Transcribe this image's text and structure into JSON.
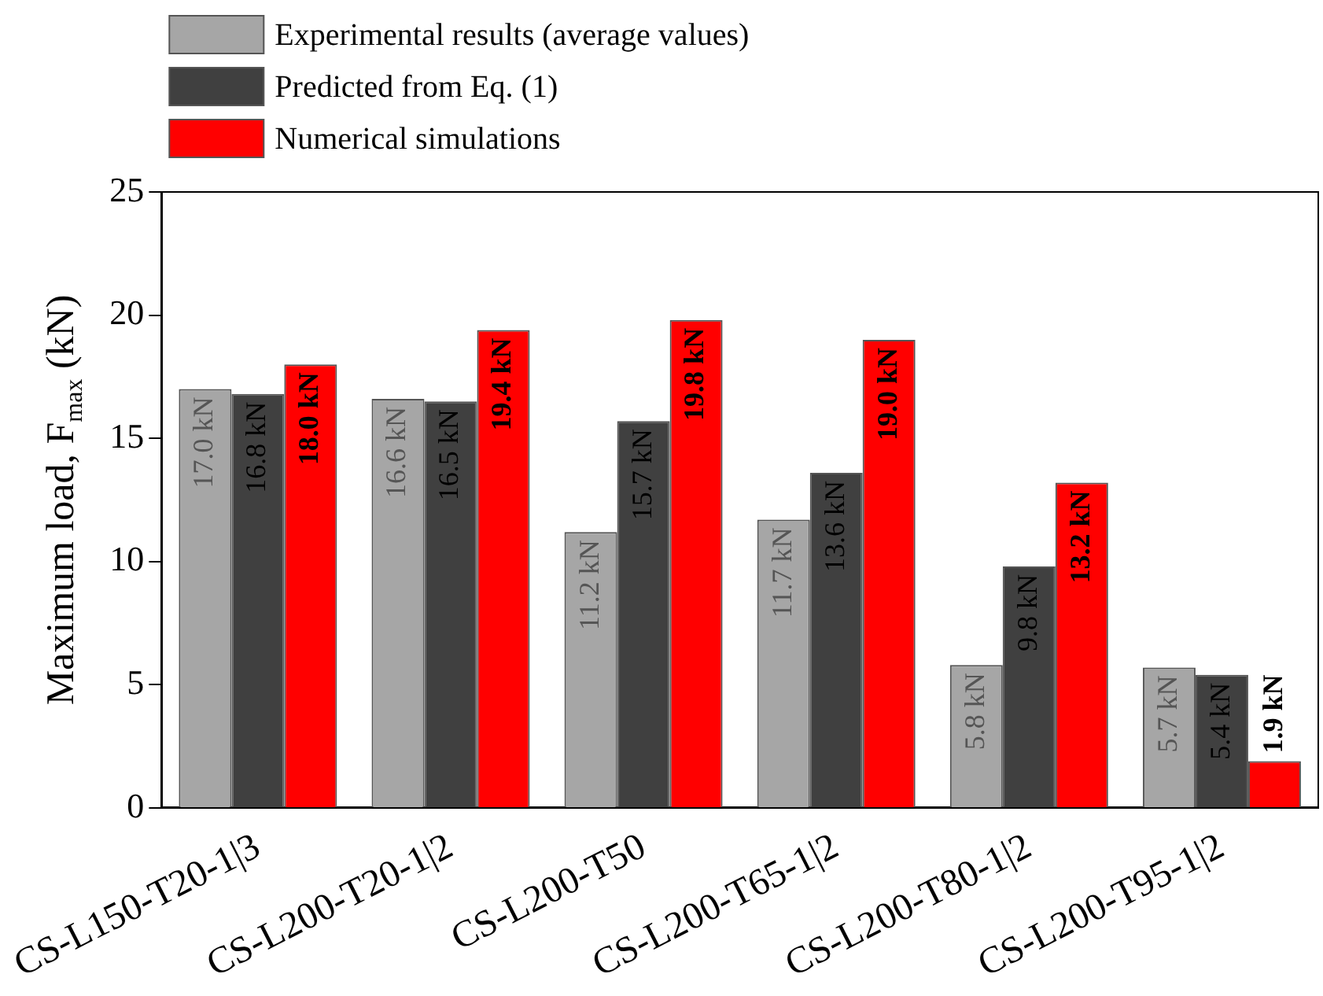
{
  "chart_data": {
    "type": "bar",
    "ylabel": "Maximum load, F$_{max}$ (kN)",
    "categories": [
      "CS-L150-T20-1|3",
      "CS-L200-T20-1|2",
      "CS-L200-T50",
      "CS-L200-T65-1|2",
      "CS-L200-T80-1|2",
      "CS-L200-T95-1|2"
    ],
    "series": [
      {
        "name": "Experimental results (average values)",
        "color": "#a6a6a6",
        "values": [
          17.0,
          16.6,
          11.2,
          11.7,
          5.8,
          5.7
        ],
        "value_labels": [
          "17.0 kN",
          "16.6 kN",
          "11.2 kN",
          "11.7 kN",
          "5.8 kN",
          "5.7 kN"
        ]
      },
      {
        "name": "Predicted from Eq. (1)",
        "color": "#404040",
        "values": [
          16.8,
          16.5,
          15.7,
          13.6,
          9.8,
          5.4
        ],
        "value_labels": [
          "16.8 kN",
          "16.5 kN",
          "15.7 kN",
          "13.6 kN",
          "9.8 kN",
          "5.4 kN"
        ]
      },
      {
        "name": "Numerical simulations",
        "color": "#ff0000",
        "values": [
          18.0,
          19.4,
          19.8,
          19.0,
          13.2,
          1.9
        ],
        "value_labels": [
          "18.0 kN",
          "19.4 kN",
          "19.8 kN",
          "19.0 kN",
          "13.2 kN",
          "1.9 kN"
        ]
      }
    ],
    "ylim": [
      0,
      25
    ],
    "yticks": [
      0,
      5,
      10,
      15,
      20,
      25
    ],
    "grid": false,
    "legend": "top left"
  }
}
